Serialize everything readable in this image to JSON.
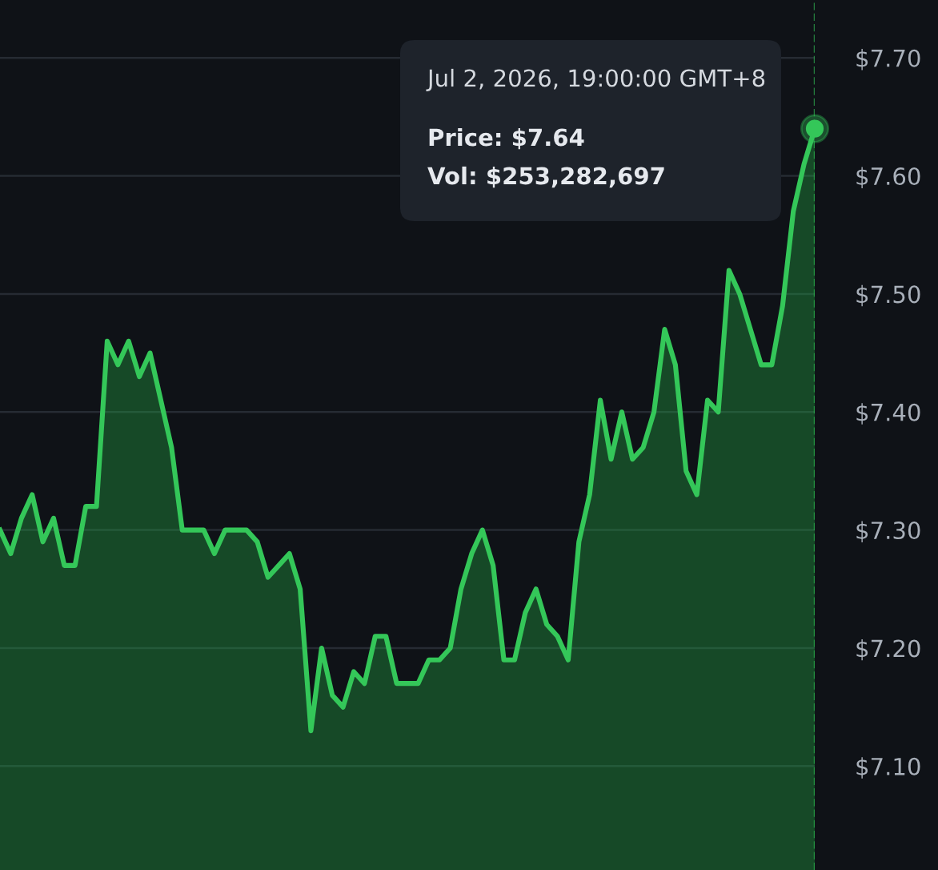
{
  "chart_data": {
    "type": "area",
    "categories": [
      null,
      null,
      null,
      null,
      null,
      null,
      null,
      null,
      null,
      null,
      null,
      null,
      null,
      null,
      null,
      null,
      null,
      null,
      null,
      null,
      null,
      null,
      null,
      null,
      null,
      null,
      null,
      null,
      null,
      null,
      null,
      null,
      null,
      null,
      null,
      null,
      null,
      null,
      null,
      null,
      null,
      null,
      null,
      null,
      null,
      null,
      null,
      null,
      null,
      null,
      null,
      null,
      null,
      null,
      null,
      null,
      null,
      null,
      null,
      null,
      null,
      null,
      null,
      null,
      null,
      null,
      null,
      null,
      null,
      null,
      null,
      null,
      null,
      null,
      null,
      null,
      null
    ],
    "series": [
      {
        "color": "#34c759",
        "values": [
          7.3,
          7.28,
          7.31,
          7.33,
          7.29,
          7.31,
          7.27,
          7.27,
          7.32,
          7.32,
          7.46,
          7.44,
          7.46,
          7.43,
          7.45,
          7.41,
          7.37,
          7.3,
          7.3,
          7.3,
          7.28,
          7.3,
          7.3,
          7.3,
          7.29,
          7.26,
          7.27,
          7.28,
          7.25,
          7.13,
          7.2,
          7.16,
          7.15,
          7.18,
          7.17,
          7.21,
          7.21,
          7.17,
          7.17,
          7.17,
          7.19,
          7.19,
          7.2,
          7.25,
          7.28,
          7.3,
          7.27,
          7.19,
          7.19,
          7.23,
          7.25,
          7.22,
          7.21,
          7.19,
          7.29,
          7.33,
          7.41,
          7.36,
          7.4,
          7.36,
          7.37,
          7.4,
          7.47,
          7.44,
          7.35,
          7.33,
          7.41,
          7.4,
          7.52,
          7.5,
          7.47,
          7.44,
          7.44,
          7.49,
          7.57,
          7.61,
          7.64
        ]
      }
    ],
    "ylim": [
      7.012,
      7.749
    ],
    "yticks": [
      {
        "value": 7.1,
        "label": "$7.10"
      },
      {
        "value": 7.2,
        "label": "$7.20"
      },
      {
        "value": 7.3,
        "label": "$7.30"
      },
      {
        "value": 7.4,
        "label": "$7.40"
      },
      {
        "value": 7.5,
        "label": "$7.50"
      },
      {
        "value": 7.6,
        "label": "$7.60"
      },
      {
        "value": 7.7,
        "label": "$7.70"
      }
    ],
    "tick_labels": "y",
    "grid": "y",
    "legend": false,
    "annotations": [
      "Jul 2, 2026, 19:00:00 GMT+8",
      "Price: $7.64",
      "Vol: $253,282,697"
    ]
  }
}
